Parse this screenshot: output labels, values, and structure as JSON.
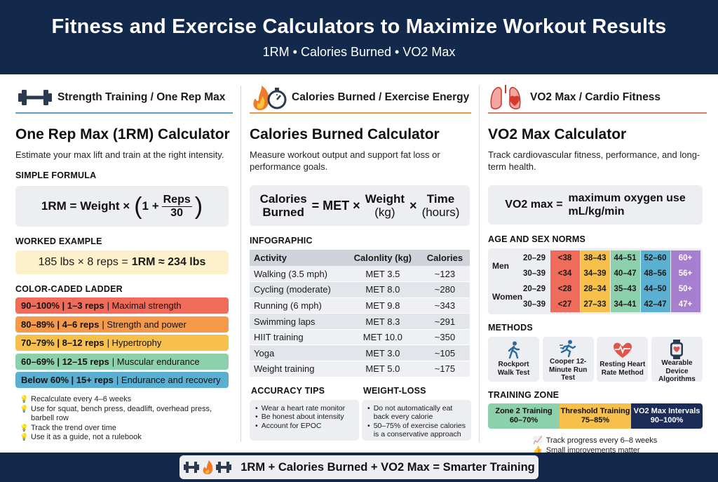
{
  "header": {
    "title": "Fitness and Exercise Calculators to Maximize Workout Results",
    "subtitle": "1RM • Calories Burned • VO2 Max"
  },
  "strength": {
    "section_label": "Strength Training / One Rep Max",
    "icon": "dumbbell-icon",
    "title": "One Rep Max (1RM) Calculator",
    "description": "Estimate your max lift and train at the right intensity.",
    "simple_formula_heading": "SIMPLE FORMULA",
    "formula_left": "1RM = Weight ×",
    "formula_one": "1 +",
    "formula_num": "Reps",
    "formula_den": "30",
    "worked_heading": "WORKED EXAMPLE",
    "worked_plain": "185 lbs × 8 reps =",
    "worked_bold": "1RM ≈ 234 lbs",
    "ladder_heading": "COLOR-CADED LADDER",
    "ladder": [
      {
        "bold": "90–100% | 1–3 reps",
        "rest": "| Maximal strength",
        "color": "#ef6b5a"
      },
      {
        "bold": "80–89% | 4–6 reps",
        "rest": "| Strength and power",
        "color": "#f49a4a"
      },
      {
        "bold": "70–79% | 8–12 reps",
        "rest": "| Hypertrophy",
        "color": "#f6c04a"
      },
      {
        "bold": "60–69% | 12–15 reps",
        "rest": "| Muscular endurance",
        "color": "#8cd1ac"
      },
      {
        "bold": "Below 60% | 15+ reps",
        "rest": "| Endurance and recovery",
        "color": "#5bb0d1"
      }
    ],
    "tips": [
      "Recalculate every 4–6 weeks",
      "Use for squat, bench press, deadlift, overhead press, barbell row",
      "Track the trend over time",
      "Use it as a guide, not a rulebook"
    ]
  },
  "calories": {
    "section_label": "Calories Burned / Exercise Energy",
    "icon": "flame-stopwatch-icon",
    "title": "Calories Burned Calculator",
    "description": "Measure workout output and support fat loss or performance goals.",
    "formula_calories_1": "Calories",
    "formula_calories_2": "Burned",
    "formula_met": "= MET ×",
    "formula_weight": "Weight",
    "formula_weight_unit": "(kg)",
    "formula_times": "×",
    "formula_time": "Time",
    "formula_time_unit": "(hours)",
    "infographic_heading": "INFOGRAPHIC",
    "table_headers": [
      "Activity",
      "Calonlity (kg)",
      "Calories"
    ],
    "activities": [
      {
        "activity": "Walking (3.5 mph)",
        "met": "MET 3.5",
        "calories": "~123"
      },
      {
        "activity": "Cycling (moderate)",
        "met": "MET 8.0",
        "calories": "~280"
      },
      {
        "activity": "Running (6 mph)",
        "met": "MET 9.8",
        "calories": "~343"
      },
      {
        "activity": "Swimming laps",
        "met": "MET 8.3",
        "calories": "~291"
      },
      {
        "activity": "HIIT training",
        "met": "MET 10.0",
        "calories": "~350"
      },
      {
        "activity": "Yoga",
        "met": "MET 3.0",
        "calories": "~105"
      },
      {
        "activity": "Weight training",
        "met": "MET 5.0",
        "calories": "~175"
      }
    ],
    "accuracy_heading": "ACCURACY TIPS",
    "accuracy_tips": [
      "Wear a heart rate monitor",
      "Be honest about intensity",
      "Account for EPOC"
    ],
    "weightloss_heading": "WEIGHT-LOSS",
    "weightloss_tips": [
      "Do not automatically eat back every calorie",
      "50–75% of exercise calories is a conservative approach"
    ]
  },
  "vo2": {
    "section_label": "VO2 Max / Cardio Fitness",
    "icon": "lungs-heart-icon",
    "title": "VO2 Max Calculator",
    "description": "Track cardiovascular fitness, performance, and long-term health.",
    "formula_left": "VO2 max =",
    "formula_right_1": "maximum oxygen use",
    "formula_right_2": "mL/kg/min",
    "norms_heading": "AGE AND SEX NORMS",
    "norm_colors": [
      "#ef6b5a",
      "#f6c04a",
      "#8cd1ac",
      "#5bb0d1",
      "#a67fd0"
    ],
    "norms": [
      {
        "sex": "Men",
        "rows": [
          {
            "age": "20–29",
            "values": [
              "<38",
              "38–43",
              "44–51",
              "52–60",
              "60+"
            ]
          },
          {
            "age": "30–39",
            "values": [
              "<34",
              "34–39",
              "40–47",
              "48–56",
              "56+"
            ]
          }
        ]
      },
      {
        "sex": "Women",
        "rows": [
          {
            "age": "20–29",
            "values": [
              "<28",
              "28–34",
              "35–43",
              "44–50",
              "50+"
            ]
          },
          {
            "age": "30–39",
            "values": [
              "<27",
              "27–33",
              "34–41",
              "42–47",
              "47+"
            ]
          }
        ]
      }
    ],
    "methods_heading": "METHODS",
    "methods": [
      {
        "icon": "walking-person-icon",
        "label_1": "Rockport",
        "label_2": "Walk Test"
      },
      {
        "icon": "running-person-icon",
        "label_1": "Cooper 12-",
        "label_2": "Minute Run Test"
      },
      {
        "icon": "heart-rate-icon",
        "label_1": "Resting Heart",
        "label_2": "Rate Method"
      },
      {
        "icon": "smartwatch-icon",
        "label_1": "Wearable Device",
        "label_2": "Algorithms"
      }
    ],
    "zone_heading": "TRAINING ZONE",
    "zones": [
      {
        "name": "Zone 2 Training",
        "range": "60–70%"
      },
      {
        "name": "Threshold Training",
        "range": "75–85%"
      },
      {
        "name": "VO2 Max Intervals",
        "range": "90–100%"
      }
    ],
    "notes": [
      {
        "icon": "chart-icon",
        "text": "Track progress every 6–8 weeks"
      },
      {
        "icon": "thumbs-up-icon",
        "text": "Small improvements matter"
      }
    ]
  },
  "footer": {
    "text": "1RM + Calories Burned + VO2 Max = Smarter Training"
  }
}
